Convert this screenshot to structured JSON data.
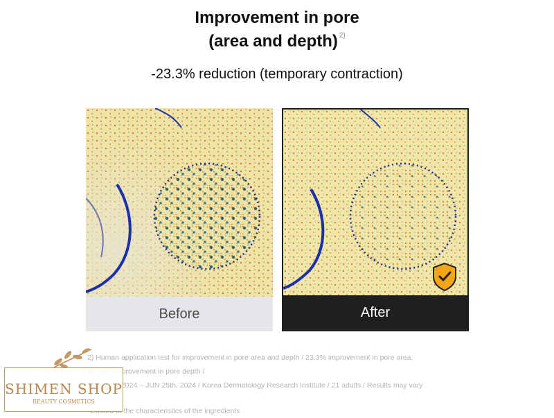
{
  "header": {
    "title_line1": "Improvement in pore",
    "title_line2": "(area and depth)",
    "title_footnote": "2)",
    "subtitle": "-23.3% reduction (temporary contraction)"
  },
  "images": {
    "before_label": "Before",
    "after_label": "After",
    "badge_icon": "shield-check-icon"
  },
  "notes": {
    "line1": "2) Human application test for improvement in pore area and depth / 23.3% improvement in pore area,",
    "line2": "22.65% improvement in pore depth /",
    "line3": "JUN 11th, 2024 ~ JUN 25th, 2024 / Korea Dermatology Research Institute / 21 adults / Results may vary",
    "line4": "*Limited to the characteristics of the ingredients"
  },
  "logo": {
    "name": "SHIMEN SHOP",
    "tagline": "BEAUTY COSMETICS"
  },
  "colors": {
    "skin": "#efe2a3",
    "pore_dark": "#1c5a6e",
    "pore_orange": "#c98a3a",
    "crease": "#1a2fb0",
    "circle": "#1f2a8c",
    "shield": "#f2a516",
    "logo_gold": "#b7864b"
  }
}
